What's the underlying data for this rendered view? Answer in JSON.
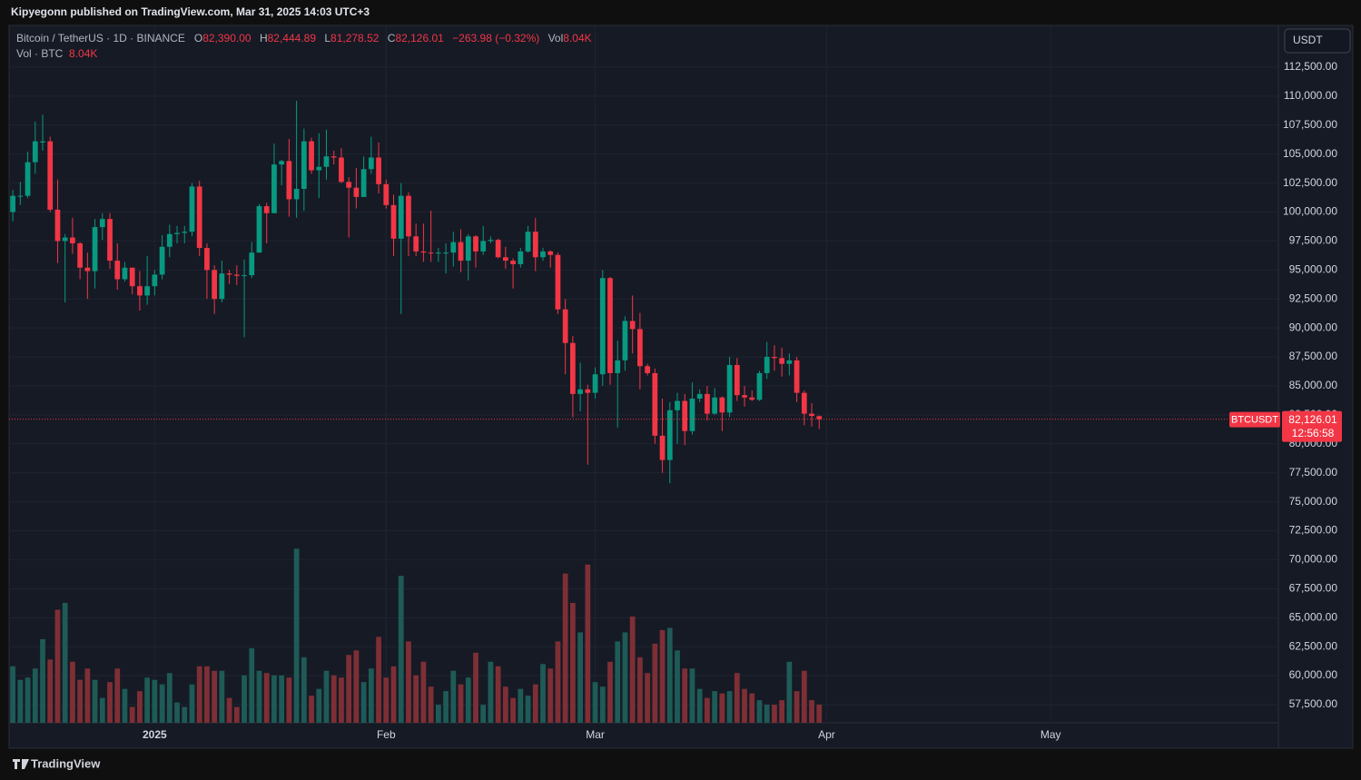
{
  "header": {
    "published": "Kipyegonn published on TradingView.com, Mar 31, 2025 14:03 UTC+3"
  },
  "legend": {
    "symbol": "Bitcoin / TetherUS · 1D · BINANCE",
    "open_key": "O",
    "open": "82,390.00",
    "high_key": "H",
    "high": "82,444.89",
    "low_key": "L",
    "low": "81,278.52",
    "close_key": "C",
    "close": "82,126.01",
    "change": "−263.98 (−0.32%)",
    "vol_key": "Vol",
    "vol": "8.04K",
    "volume_title": "Vol · BTC",
    "volume_value": "8.04K"
  },
  "currency_button": "USDT",
  "price_label": {
    "symbol": "BTCUSDT",
    "price": "82,126.01",
    "countdown": "12:56:58"
  },
  "footer": {
    "brand": "TradingView"
  },
  "chart_data": {
    "type": "candlestick",
    "up_color": "#089981",
    "down_color": "#f23645",
    "volume_up_color": "#1e5b57",
    "volume_down_color": "#7e2f35",
    "grid": true,
    "xlim": [
      -0.5,
      169.5
    ],
    "xticks": [
      {
        "value": 19,
        "label": "2025"
      },
      {
        "value": 50,
        "label": "Feb"
      },
      {
        "value": 78,
        "label": "Mar"
      },
      {
        "value": 109,
        "label": "Apr"
      },
      {
        "value": 139,
        "label": "May"
      }
    ],
    "ylim": [
      55930,
      116100
    ],
    "yticks": [
      {
        "value": 57500,
        "label": "57,500.00"
      },
      {
        "value": 60000,
        "label": "60,000.00"
      },
      {
        "value": 62500,
        "label": "62,500.00"
      },
      {
        "value": 65000,
        "label": "65,000.00"
      },
      {
        "value": 67500,
        "label": "67,500.00"
      },
      {
        "value": 70000,
        "label": "70,000.00"
      },
      {
        "value": 72500,
        "label": "72,500.00"
      },
      {
        "value": 75000,
        "label": "75,000.00"
      },
      {
        "value": 77500,
        "label": "77,500.00"
      },
      {
        "value": 80000,
        "label": "80,000.00"
      },
      {
        "value": 82500,
        "label": "82,500.00"
      },
      {
        "value": 85000,
        "label": "85,000.00"
      },
      {
        "value": 87500,
        "label": "87,500.00"
      },
      {
        "value": 90000,
        "label": "90,000.00"
      },
      {
        "value": 92500,
        "label": "92,500.00"
      },
      {
        "value": 95000,
        "label": "95,000.00"
      },
      {
        "value": 97500,
        "label": "97,500.00"
      },
      {
        "value": 100000,
        "label": "100,000.00"
      },
      {
        "value": 102500,
        "label": "102,500.00"
      },
      {
        "value": 105000,
        "label": "105,000.00"
      },
      {
        "value": 107500,
        "label": "107,500.00"
      },
      {
        "value": 110000,
        "label": "110,000.00"
      },
      {
        "value": 112500,
        "label": "112,500.00"
      }
    ],
    "open": [
      100000,
      101400,
      101400,
      104300,
      106000,
      106100,
      100200,
      97500,
      97800,
      97300,
      95200,
      94900,
      98700,
      99400,
      95800,
      94200,
      95200,
      93600,
      92800,
      93600,
      94600,
      97000,
      98100,
      98200,
      98300,
      102200,
      96900,
      95000,
      92500,
      94700,
      94600,
      94500,
      94550,
      96500,
      100500,
      99900,
      104100,
      104400,
      101100,
      102000,
      106100,
      103600,
      103900,
      104800,
      104700,
      102600,
      102100,
      101300,
      103700,
      104700,
      102400,
      100600,
      97700,
      101400,
      97900,
      96600,
      96500,
      96450,
      96500,
      96500,
      97400,
      95800,
      97900,
      96600,
      97500,
      97600,
      96100,
      95800,
      95500,
      96600,
      98300,
      96100,
      96600,
      96300,
      91600,
      88700,
      84300,
      84700,
      84400,
      86000,
      94300,
      86100,
      87200,
      90600,
      89900,
      86700,
      86100,
      80700,
      78600,
      82900,
      83700,
      81100,
      83900,
      84300,
      82600,
      84000,
      82700,
      86800,
      84200,
      84000,
      83800,
      86100,
      87500,
      87400,
      86900,
      87200,
      84400,
      82600,
      82390
    ],
    "high": [
      101900,
      102600,
      105200,
      107800,
      108400,
      106500,
      102800,
      98100,
      99500,
      97400,
      96500,
      99400,
      99900,
      99900,
      97300,
      95700,
      95200,
      94900,
      96200,
      95000,
      98000,
      98900,
      98800,
      98800,
      102500,
      102700,
      97300,
      95400,
      95800,
      95000,
      95400,
      95900,
      97400,
      100700,
      100800,
      105900,
      104500,
      106300,
      109600,
      107200,
      106400,
      106800,
      107100,
      105300,
      105500,
      103000,
      103800,
      104800,
      106500,
      106000,
      102800,
      101500,
      102500,
      101700,
      99000,
      99000,
      100100,
      96900,
      97300,
      98300,
      98500,
      98100,
      98000,
      98800,
      97900,
      97700,
      97000,
      96000,
      96900,
      98800,
      99500,
      96900,
      96700,
      96500,
      92500,
      89300,
      87000,
      85100,
      86600,
      95000,
      94400,
      88900,
      91000,
      92800,
      91300,
      86900,
      86500,
      83900,
      83600,
      84400,
      84300,
      85300,
      84700,
      85000,
      84800,
      84100,
      87500,
      87400,
      85000,
      84600,
      86300,
      88800,
      88500,
      88300,
      87800,
      87500,
      84600,
      83500,
      82444.89
    ],
    "low": [
      99200,
      100600,
      101200,
      103300,
      105300,
      100000,
      95600,
      92200,
      96400,
      94200,
      92500,
      93400,
      97600,
      95100,
      93300,
      94000,
      92900,
      91500,
      92000,
      92800,
      94200,
      96100,
      97300,
      97300,
      97900,
      96200,
      92500,
      91200,
      92200,
      93800,
      93700,
      89200,
      94300,
      96500,
      97300,
      99900,
      102300,
      99600,
      99500,
      100100,
      103300,
      101200,
      102800,
      104100,
      102500,
      97800,
      100300,
      101300,
      103300,
      101600,
      100300,
      96200,
      91200,
      96200,
      96200,
      95700,
      95700,
      95700,
      94700,
      95300,
      94800,
      94100,
      95200,
      96300,
      97300,
      96000,
      95100,
      93400,
      95200,
      96500,
      94900,
      95800,
      95200,
      91200,
      86000,
      82300,
      82800,
      78200,
      83900,
      85000,
      85100,
      81400,
      86300,
      87800,
      84700,
      85900,
      80000,
      77500,
      76600,
      80000,
      79900,
      80800,
      83600,
      82000,
      82500,
      81100,
      82300,
      83700,
      83200,
      83700,
      83700,
      85600,
      86300,
      85800,
      85900,
      83600,
      81600,
      81500,
      81278.52
    ],
    "close": [
      101400,
      101400,
      104300,
      106100,
      106100,
      100200,
      97500,
      97800,
      97300,
      95200,
      94900,
      98700,
      99400,
      95800,
      94200,
      95200,
      93600,
      92800,
      93600,
      94600,
      97000,
      98100,
      98200,
      98300,
      102200,
      96900,
      95000,
      92500,
      94700,
      94600,
      94500,
      94550,
      96500,
      100500,
      99900,
      104100,
      104400,
      101100,
      102000,
      106100,
      103600,
      103900,
      104800,
      104700,
      102600,
      102100,
      101300,
      103700,
      104700,
      102400,
      100600,
      97700,
      101400,
      97900,
      96600,
      96500,
      96450,
      96500,
      96500,
      97400,
      95800,
      97900,
      96600,
      97500,
      97600,
      96100,
      95800,
      95500,
      96600,
      98300,
      96100,
      96600,
      96300,
      91600,
      88700,
      84300,
      84700,
      84400,
      86000,
      94300,
      86100,
      87200,
      90600,
      89900,
      86700,
      86100,
      80700,
      78600,
      82900,
      83700,
      81100,
      83900,
      84300,
      82600,
      84000,
      82700,
      86800,
      84200,
      84000,
      83800,
      86100,
      87500,
      87400,
      86900,
      87200,
      84400,
      82600,
      82400,
      82126.01
    ],
    "volume": [
      25,
      19,
      20,
      24,
      37,
      28,
      50,
      53,
      27,
      19,
      24,
      19,
      11,
      18,
      24,
      15,
      7,
      14,
      20,
      19,
      17,
      22,
      9,
      7,
      17,
      25,
      25,
      23,
      23,
      11,
      7,
      21,
      33,
      23,
      22,
      21,
      21,
      20,
      77,
      29,
      12,
      15,
      23,
      21,
      20,
      30,
      32,
      18,
      24,
      38,
      20,
      25,
      65,
      36,
      21,
      27,
      16,
      8,
      14,
      23,
      17,
      20,
      31,
      8,
      27,
      25,
      16,
      11,
      15,
      12,
      17,
      26,
      24,
      36,
      66,
      53,
      40,
      70,
      18,
      16,
      27,
      36,
      40,
      47,
      29,
      22,
      35,
      41,
      42,
      32,
      24,
      24,
      15,
      11,
      14,
      13,
      14,
      22,
      15,
      13,
      10,
      8,
      8,
      10,
      27,
      14,
      23,
      10,
      8.04
    ]
  }
}
